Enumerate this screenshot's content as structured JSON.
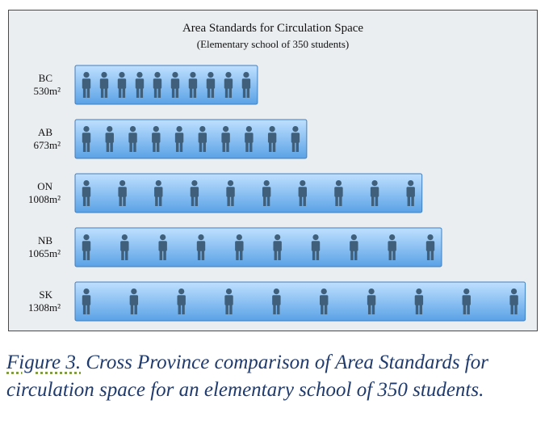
{
  "chart_data": {
    "type": "bar",
    "orientation": "horizontal",
    "title": "Area Standards for Circulation Space",
    "subtitle": "(Elementary school of 350 students)",
    "categories": [
      "BC",
      "AB",
      "ON",
      "NB",
      "SK"
    ],
    "value_labels": [
      "530m²",
      "673m²",
      "1008m²",
      "1065m²",
      "1308m²"
    ],
    "values": [
      530,
      673,
      1008,
      1065,
      1308
    ],
    "icons_per_bar": 10,
    "icon": "person-icon",
    "colors": {
      "bar_top": "#bfe0ff",
      "bar_bottom": "#5aa2e6",
      "bar_border": "#3f7fc0",
      "icon": "#3f5f7a"
    }
  },
  "caption": {
    "lead": "Figure 3.",
    "text": " Cross Province comparison of Area Standards for circulation space for an elementary school of 350 students."
  }
}
